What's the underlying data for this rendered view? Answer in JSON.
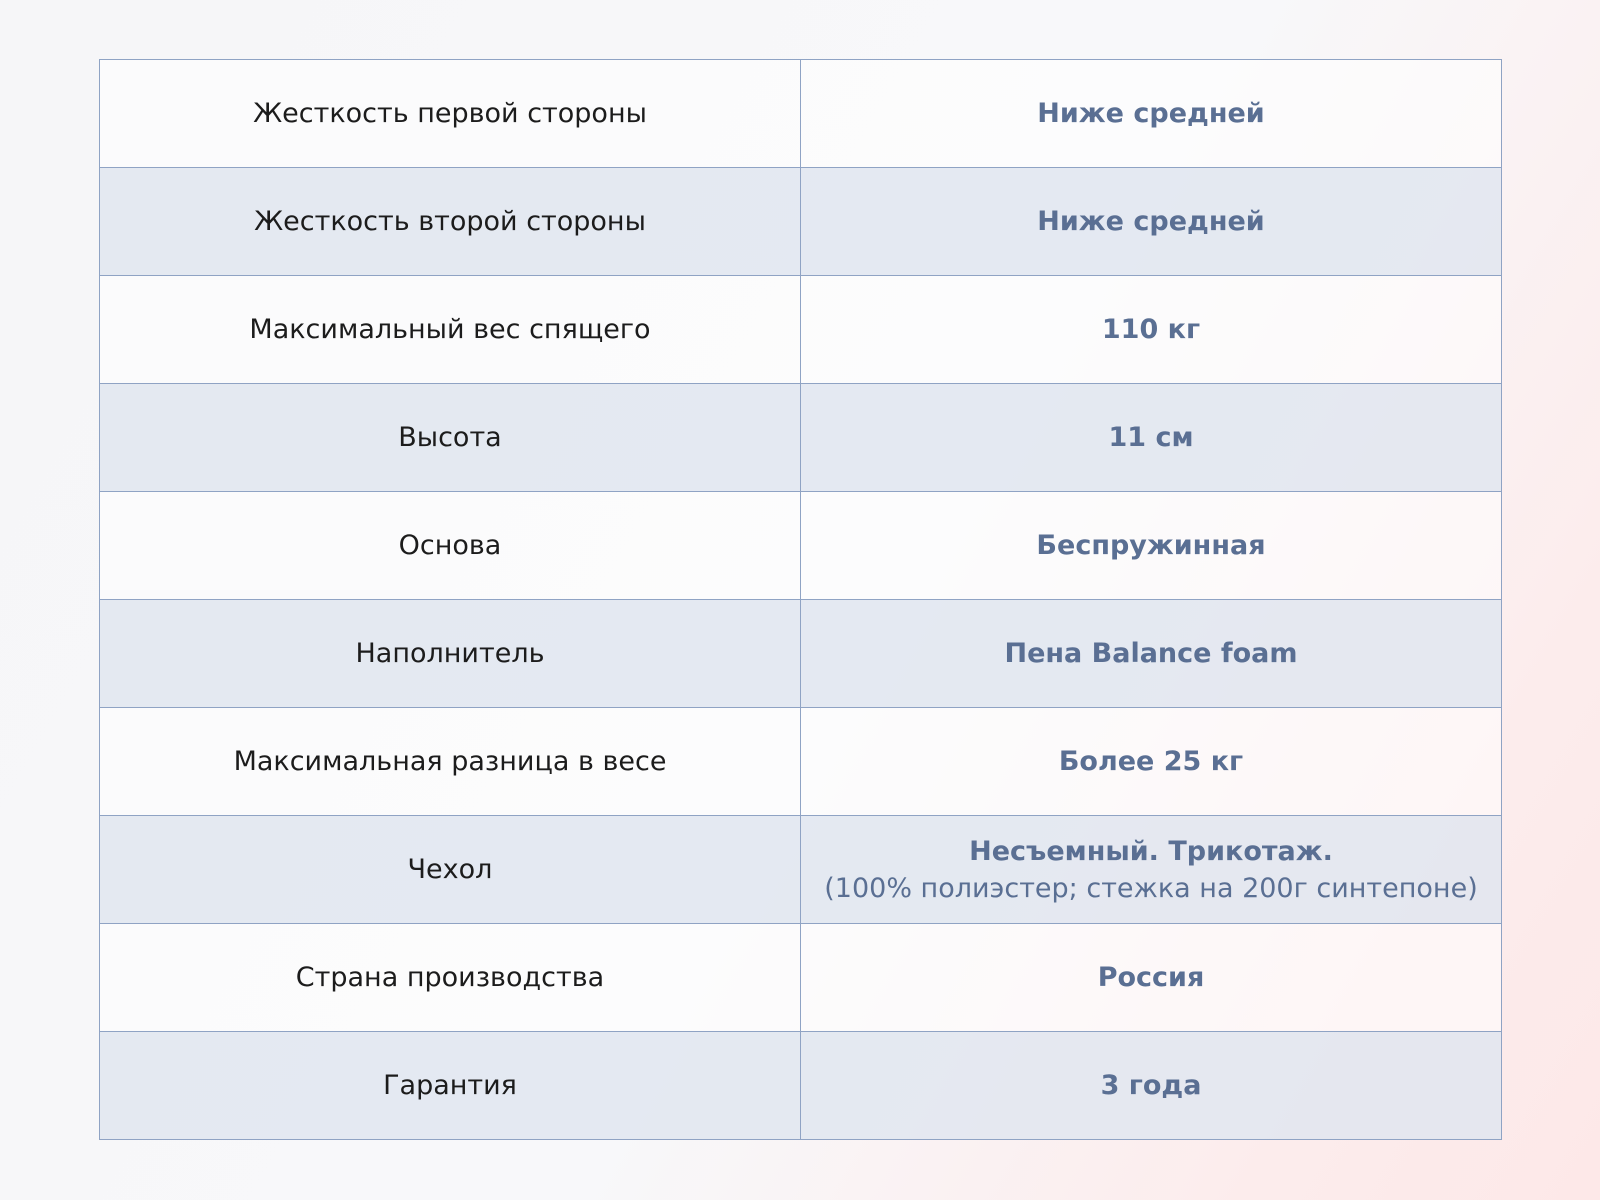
{
  "rows": [
    {
      "label": "Жесткость первой стороны",
      "value": "Ниже средней"
    },
    {
      "label": "Жесткость второй стороны",
      "value": "Ниже средней"
    },
    {
      "label": "Максимальный вес спящего",
      "value": "110 кг"
    },
    {
      "label": "Высота",
      "value": "11 см"
    },
    {
      "label": "Основа",
      "value": "Беспружинная"
    },
    {
      "label": "Наполнитель",
      "value": "Пена Balance foam"
    },
    {
      "label": "Максимальная разница в весе",
      "value": "Более 25 кг"
    },
    {
      "label": "Чехол",
      "value": "Несъемный. Трикотаж.",
      "note": "(100% полиэстер; стежка на 200г синтепоне)"
    },
    {
      "label": "Страна производства",
      "value": "Россия"
    },
    {
      "label": "Гарантия",
      "value": "3 года"
    }
  ],
  "colors": {
    "accent": "#5a6f93",
    "border": "#8fa3c4",
    "stripe": "#e9ecf3"
  }
}
